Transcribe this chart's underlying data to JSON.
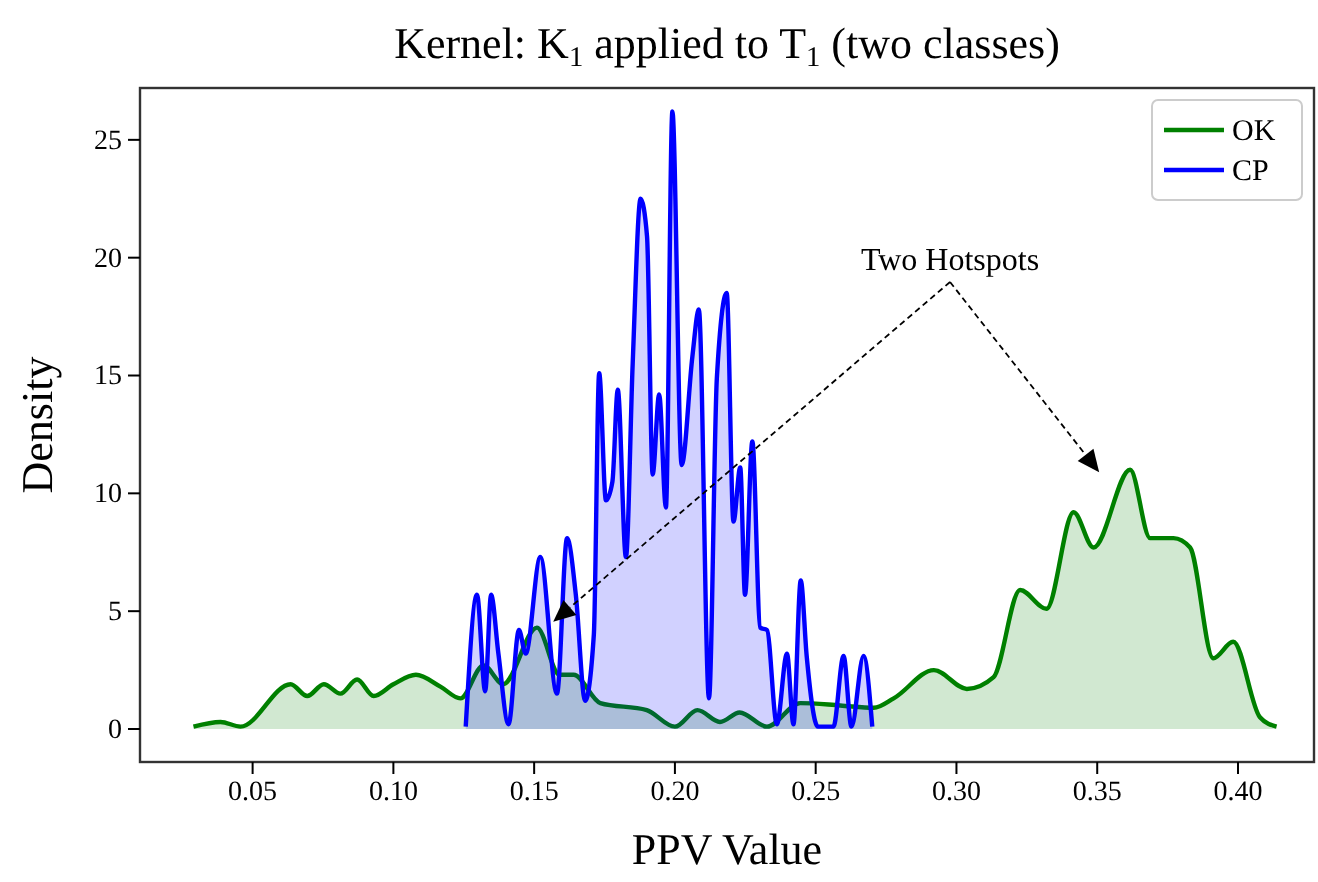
{
  "chart_data": {
    "type": "area",
    "title": "Kernel: K$_{1}$ applied to T$_{1}$ (two classes)",
    "xlabel": "PPV Value",
    "ylabel": "Density",
    "xlim": [
      0.01,
      0.427
    ],
    "ylim": [
      -1.4,
      27.2
    ],
    "xticks": [
      {
        "value": 0.05,
        "label": "0.05"
      },
      {
        "value": 0.1,
        "label": "0.10"
      },
      {
        "value": 0.15,
        "label": "0.15"
      },
      {
        "value": 0.2,
        "label": "0.20"
      },
      {
        "value": 0.25,
        "label": "0.25"
      },
      {
        "value": 0.3,
        "label": "0.30"
      },
      {
        "value": 0.35,
        "label": "0.35"
      },
      {
        "value": 0.4,
        "label": "0.40"
      }
    ],
    "yticks": [
      0,
      5,
      10,
      15,
      20,
      25
    ],
    "legend": "top right",
    "grid": false,
    "annotations": [
      "Two Hotspots"
    ],
    "series": [
      {
        "name": "OK",
        "color": "#008000",
        "x": [
          0.029,
          0.0386,
          0.0457,
          0.0635,
          0.0694,
          0.0753,
          0.0812,
          0.0871,
          0.093,
          0.1,
          0.108,
          0.1167,
          0.1238,
          0.132,
          0.139,
          0.151,
          0.159,
          0.164,
          0.1735,
          0.19,
          0.2,
          0.208,
          0.216,
          0.223,
          0.2327,
          0.2445,
          0.2587,
          0.2706,
          0.2777,
          0.292,
          0.3037,
          0.3132,
          0.3226,
          0.332,
          0.3416,
          0.3487,
          0.3617,
          0.3688,
          0.3771,
          0.383,
          0.3912,
          0.3983,
          0.4078,
          0.4137
        ],
        "values": [
          0.1,
          0.3,
          0.1,
          1.9,
          1.4,
          1.9,
          1.5,
          2.1,
          1.4,
          1.9,
          2.3,
          1.8,
          1.3,
          2.7,
          1.9,
          4.3,
          2.3,
          2.3,
          1.1,
          0.8,
          0.1,
          0.8,
          0.3,
          0.7,
          0.1,
          1.1,
          1.0,
          0.9,
          1.3,
          2.5,
          1.7,
          2.2,
          5.9,
          5.1,
          9.2,
          7.7,
          11.0,
          8.1,
          8.1,
          7.7,
          3.0,
          3.7,
          0.5,
          0.1
        ]
      },
      {
        "name": "CP",
        "color": "#0000ff",
        "x": [
          0.1257,
          0.1297,
          0.1326,
          0.1347,
          0.1373,
          0.1409,
          0.1446,
          0.147,
          0.1522,
          0.1581,
          0.1617,
          0.1648,
          0.1681,
          0.1712,
          0.1731,
          0.1755,
          0.1778,
          0.1797,
          0.1826,
          0.185,
          0.1878,
          0.1901,
          0.1921,
          0.1944,
          0.1968,
          0.1991,
          0.2024,
          0.2062,
          0.2085,
          0.2121,
          0.2149,
          0.2184,
          0.2208,
          0.2232,
          0.2249,
          0.2275,
          0.2303,
          0.2327,
          0.2362,
          0.2398,
          0.2421,
          0.2447,
          0.2468,
          0.2508,
          0.2563,
          0.2599,
          0.2627,
          0.267,
          0.2701
        ],
        "values": [
          0.1,
          5.7,
          1.6,
          5.7,
          3.2,
          0.2,
          4.2,
          3.2,
          7.3,
          1.5,
          8.1,
          5.7,
          1.2,
          4.0,
          15.1,
          9.7,
          10.5,
          14.4,
          7.3,
          15.5,
          22.5,
          20.9,
          10.8,
          14.2,
          9.4,
          26.2,
          11.2,
          15.8,
          17.8,
          1.3,
          14.9,
          18.5,
          8.8,
          11.1,
          5.7,
          12.2,
          4.3,
          4.2,
          0.2,
          3.2,
          0.2,
          6.3,
          3.1,
          0.1,
          0.1,
          3.1,
          0.1,
          3.1,
          0.1
        ]
      }
    ]
  }
}
